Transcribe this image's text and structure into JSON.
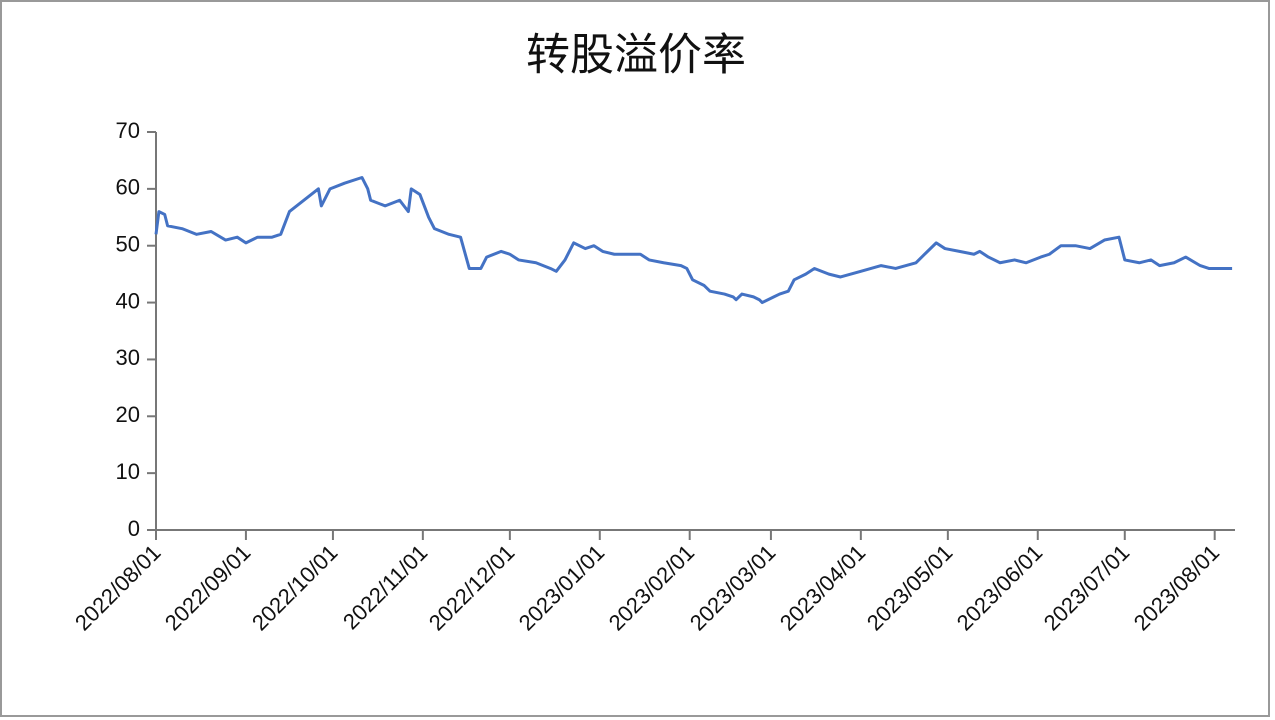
{
  "chart_data": {
    "type": "line",
    "title": "转股溢价率",
    "x": [
      "2022/08/01",
      "2022/08/02",
      "2022/08/04",
      "2022/08/05",
      "2022/08/10",
      "2022/08/15",
      "2022/08/20",
      "2022/08/25",
      "2022/08/29",
      "2022/09/01",
      "2022/09/05",
      "2022/09/10",
      "2022/09/13",
      "2022/09/16",
      "2022/09/21",
      "2022/09/26",
      "2022/09/27",
      "2022/09/30",
      "2022/10/05",
      "2022/10/11",
      "2022/10/13",
      "2022/10/14",
      "2022/10/19",
      "2022/10/24",
      "2022/10/27",
      "2022/10/28",
      "2022/10/31",
      "2022/11/03",
      "2022/11/05",
      "2022/11/10",
      "2022/11/14",
      "2022/11/17",
      "2022/11/21",
      "2022/11/23",
      "2022/11/28",
      "2022/12/01",
      "2022/12/04",
      "2022/12/10",
      "2022/12/15",
      "2022/12/17",
      "2022/12/20",
      "2022/12/23",
      "2022/12/27",
      "2022/12/30",
      "2023/01/02",
      "2023/01/06",
      "2023/01/15",
      "2023/01/18",
      "2023/01/23",
      "2023/01/29",
      "2023/01/31",
      "2023/02/02",
      "2023/02/06",
      "2023/02/08",
      "2023/02/13",
      "2023/02/16",
      "2023/02/17",
      "2023/02/19",
      "2023/02/23",
      "2023/02/25",
      "2023/02/26",
      "2023/03/02",
      "2023/03/04",
      "2023/03/07",
      "2023/03/09",
      "2023/03/13",
      "2023/03/16",
      "2023/03/21",
      "2023/03/25",
      "2023/04/01",
      "2023/04/08",
      "2023/04/13",
      "2023/04/20",
      "2023/04/23",
      "2023/04/27",
      "2023/04/30",
      "2023/05/05",
      "2023/05/10",
      "2023/05/12",
      "2023/05/15",
      "2023/05/19",
      "2023/05/24",
      "2023/05/28",
      "2023/06/02",
      "2023/06/05",
      "2023/06/09",
      "2023/06/14",
      "2023/06/19",
      "2023/06/24",
      "2023/06/29",
      "2023/07/01",
      "2023/07/06",
      "2023/07/10",
      "2023/07/13",
      "2023/07/18",
      "2023/07/22",
      "2023/07/27",
      "2023/07/30",
      "2023/08/07"
    ],
    "series": [
      {
        "color": "#4472c4",
        "values": [
          52,
          56,
          55.5,
          53.5,
          53,
          52,
          52.5,
          51,
          51.5,
          50.5,
          51.5,
          51.5,
          52,
          56,
          58,
          60,
          57,
          60,
          61,
          62,
          60,
          58,
          57,
          58,
          56,
          60,
          59,
          55,
          53,
          52,
          51.5,
          46,
          46,
          48,
          49,
          48.5,
          47.5,
          47,
          46,
          45.5,
          47.5,
          50.5,
          49.5,
          50,
          49,
          48.5,
          48.5,
          47.5,
          47,
          46.5,
          46,
          44,
          43,
          42,
          41.5,
          41,
          40.5,
          41.5,
          41,
          40.5,
          40,
          41,
          41.5,
          42,
          44,
          45,
          46,
          45,
          44.5,
          45.5,
          46.5,
          46,
          47,
          48.5,
          50.5,
          49.5,
          49,
          48.5,
          49,
          48,
          47,
          47.5,
          47,
          48,
          48.5,
          50,
          50,
          49.5,
          51,
          51.5,
          47.5,
          47,
          47.5,
          46.5,
          47,
          48,
          46.5,
          46,
          46
        ]
      }
    ],
    "xlim": [
      "2022/08/01",
      "2023/08/08"
    ],
    "xticks": [
      "2022/08/01",
      "2022/09/01",
      "2022/10/01",
      "2022/11/01",
      "2022/12/01",
      "2023/01/01",
      "2023/02/01",
      "2023/03/01",
      "2023/04/01",
      "2023/05/01",
      "2023/06/01",
      "2023/07/01",
      "2023/08/01"
    ],
    "ylim": [
      0,
      70
    ],
    "yticks": [
      0,
      10,
      20,
      30,
      40,
      50,
      60,
      70
    ]
  }
}
